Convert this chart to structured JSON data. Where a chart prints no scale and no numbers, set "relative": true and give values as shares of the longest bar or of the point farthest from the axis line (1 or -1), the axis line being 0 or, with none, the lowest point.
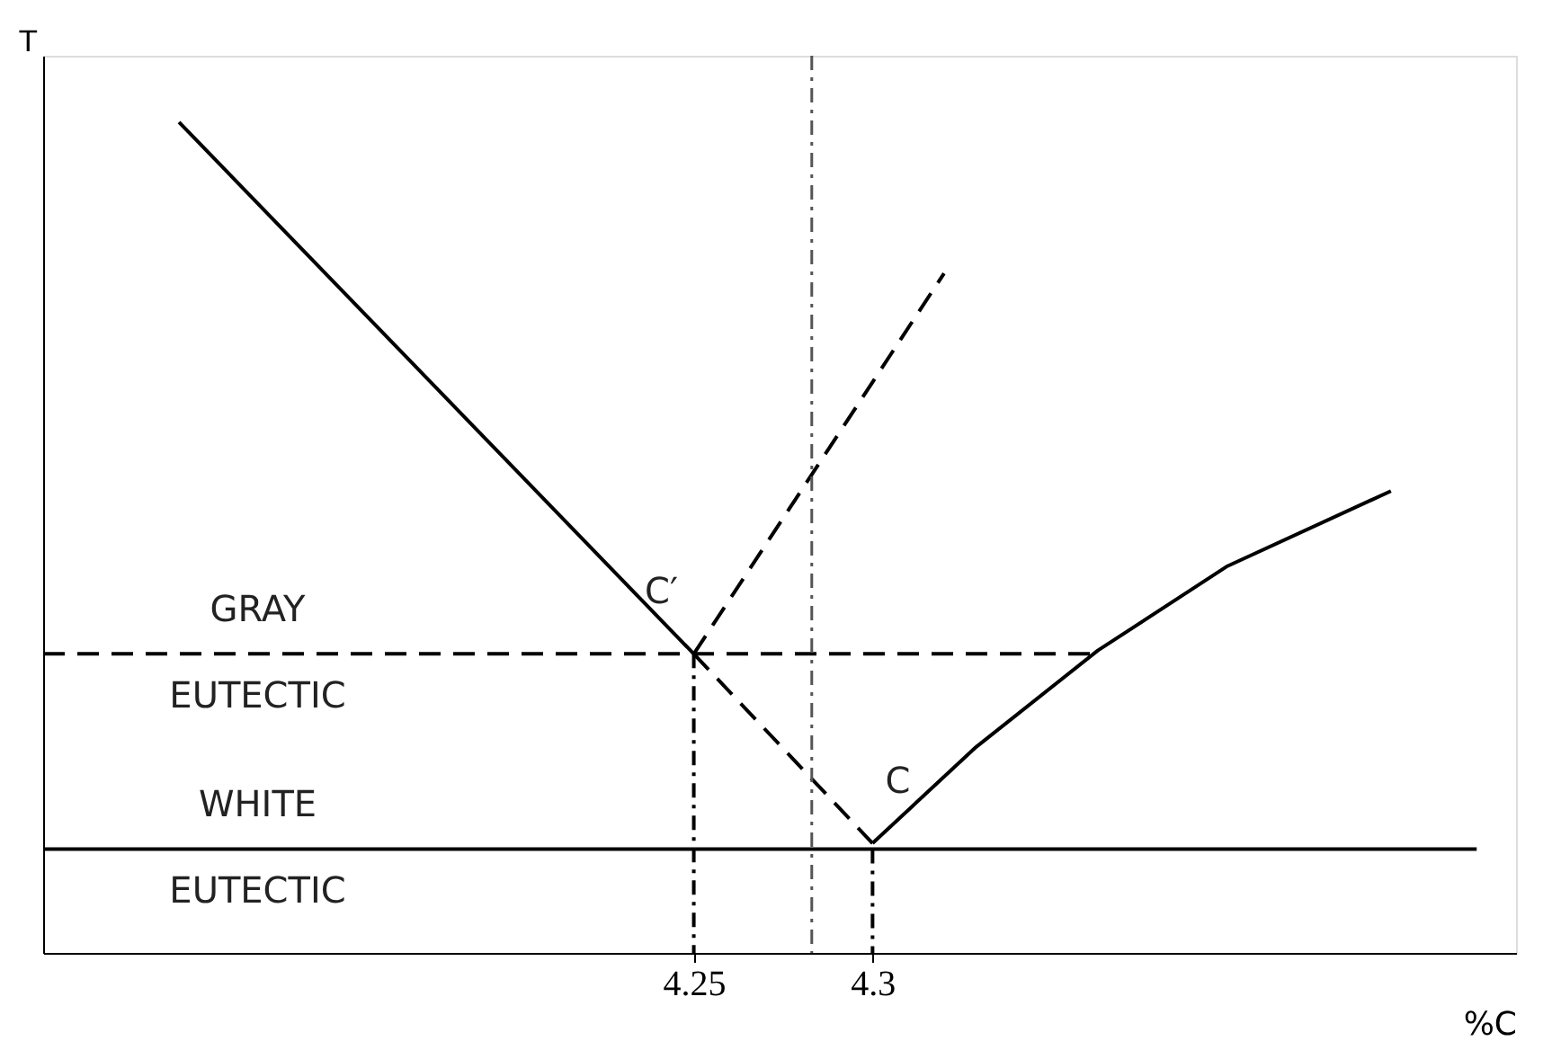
{
  "chart_data": {
    "type": "line",
    "relative": true,
    "xlabel": "%C",
    "ylabel": "T",
    "xlim": [
      4.068,
      4.48
    ],
    "xticks": [
      4.25,
      4.3
    ],
    "marker": "none",
    "series": [
      {
        "color": "#000000",
        "line_style": "solid",
        "x": [
          4.106,
          4.25
        ],
        "values": [
          1.0,
          0.36
        ]
      },
      {
        "color": "#000000",
        "line_style": "dashed",
        "x": [
          4.25,
          4.3
        ],
        "values": [
          0.36,
          0.132
        ]
      },
      {
        "color": "#000000",
        "line_style": "solid",
        "x": [
          4.3,
          4.329,
          4.363,
          4.399,
          4.445
        ],
        "values": [
          0.132,
          0.248,
          0.364,
          0.465,
          0.556
        ]
      },
      {
        "color": "#000000",
        "line_style": "dashed",
        "x": [
          4.25,
          4.32
        ],
        "values": [
          0.36,
          0.818
        ]
      },
      {
        "color": "#000000",
        "line_style": "dashed",
        "x": [
          4.068,
          4.363
        ],
        "values": [
          0.36,
          0.36
        ]
      },
      {
        "color": "#000000",
        "line_style": "solid",
        "x": [
          4.068,
          4.469
        ],
        "values": [
          0.125,
          0.125
        ]
      },
      {
        "color": "#000000",
        "line_style": "dotted",
        "x": [
          4.25,
          4.25
        ],
        "values": [
          0.36,
          0
        ]
      },
      {
        "color": "#000000",
        "line_style": "dotted",
        "x": [
          4.3,
          4.3
        ],
        "values": [
          0.125,
          0
        ]
      }
    ],
    "ref_lines": [
      {
        "axis": "x",
        "value": 4.283,
        "line_style": "dotted",
        "color": "#555555"
      }
    ],
    "annotations": [
      {
        "text": "C′",
        "x": 4.25,
        "y": 0.36
      },
      {
        "text": "C",
        "x": 4.3,
        "y": 0.132
      },
      {
        "text": "GRAY",
        "x": 4.128,
        "y": 0.36
      },
      {
        "text": "EUTECTIC",
        "x": 4.128,
        "y": 0.36
      },
      {
        "text": "WHITE",
        "x": 4.128,
        "y": 0.125
      },
      {
        "text": "EUTECTIC",
        "x": 4.128,
        "y": 0.125
      }
    ]
  }
}
